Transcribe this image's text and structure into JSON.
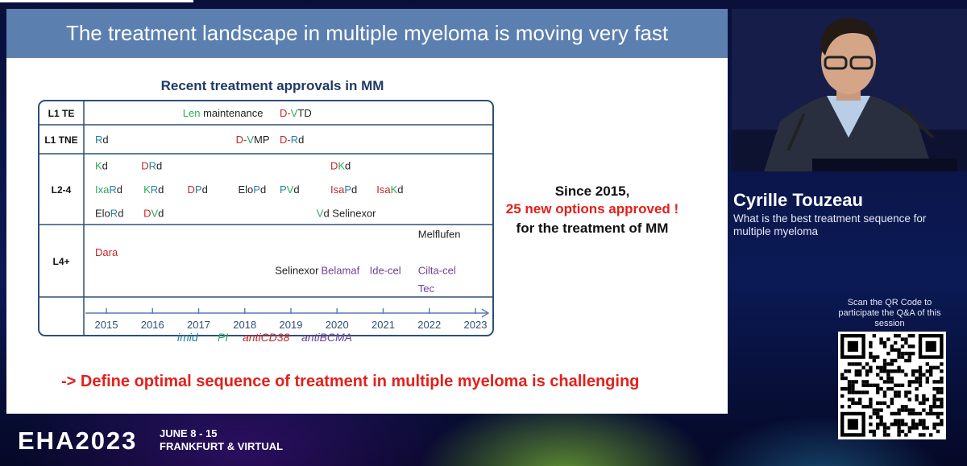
{
  "slide": {
    "title": "The treatment landscape in multiple myeloma is moving very fast",
    "chart_title": "Recent treatment approvals in MM",
    "since": {
      "line1": "Since 2015,",
      "line2": "25 new options approved !",
      "line3": "for the treatment of MM"
    },
    "footer_message": "-> Define optimal sequence of treatment  in multiple myeloma is challenging",
    "legend": [
      {
        "label": "imid",
        "color": "#2b7fa3"
      },
      {
        "label": "PI",
        "color": "#2bab5b"
      },
      {
        "label": "antiCD38",
        "color": "#c4272c"
      },
      {
        "label": "antiBCMA",
        "color": "#6f3f93"
      }
    ]
  },
  "chart_data": {
    "type": "table",
    "title": "Recent treatment approvals in MM",
    "rows": [
      {
        "line": "L1 TE",
        "entries": [
          {
            "year": 2016.9,
            "level": 0,
            "parts": [
              [
                "Len",
                "#2bab5b"
              ],
              [
                " maintenance",
                "#222222"
              ]
            ]
          },
          {
            "year": 2019.0,
            "level": 0,
            "parts": [
              [
                "D-",
                "#c4272c"
              ],
              [
                "V",
                "#2bab5b"
              ],
              [
                "TD",
                "#222222"
              ]
            ]
          }
        ]
      },
      {
        "line": "L1 TNE",
        "entries": [
          {
            "year": 2015.0,
            "level": 0,
            "parts": [
              [
                "R",
                "#2b7fa3"
              ],
              [
                "d",
                "#222222"
              ]
            ]
          },
          {
            "year": 2018.05,
            "level": 0,
            "parts": [
              [
                "D-",
                "#c4272c"
              ],
              [
                "V",
                "#2bab5b"
              ],
              [
                "MP",
                "#222222"
              ]
            ]
          },
          {
            "year": 2019.0,
            "level": 0,
            "parts": [
              [
                "D-",
                "#c4272c"
              ],
              [
                "R",
                "#2b7fa3"
              ],
              [
                "d",
                "#222222"
              ]
            ]
          }
        ]
      },
      {
        "line": "L2-4",
        "entries": [
          {
            "year": 2015.0,
            "level": 0,
            "parts": [
              [
                "K",
                "#2bab5b"
              ],
              [
                "d",
                "#222222"
              ]
            ]
          },
          {
            "year": 2016.0,
            "level": 0,
            "parts": [
              [
                "D",
                "#c4272c"
              ],
              [
                "R",
                "#2b7fa3"
              ],
              [
                "d",
                "#222222"
              ]
            ]
          },
          {
            "year": 2020.1,
            "level": 0,
            "parts": [
              [
                "D",
                "#c4272c"
              ],
              [
                "K",
                "#2bab5b"
              ],
              [
                "d",
                "#222222"
              ]
            ]
          },
          {
            "year": 2015.0,
            "level": 1,
            "parts": [
              [
                "Ixa",
                "#2bab5b"
              ],
              [
                "R",
                "#2b7fa3"
              ],
              [
                "d",
                "#222222"
              ]
            ]
          },
          {
            "year": 2016.05,
            "level": 1,
            "parts": [
              [
                "K",
                "#2bab5b"
              ],
              [
                "R",
                "#2b7fa3"
              ],
              [
                "d",
                "#222222"
              ]
            ]
          },
          {
            "year": 2017.0,
            "level": 1,
            "parts": [
              [
                "D",
                "#c4272c"
              ],
              [
                "P",
                "#2b7fa3"
              ],
              [
                "d",
                "#222222"
              ]
            ]
          },
          {
            "year": 2018.1,
            "level": 1,
            "parts": [
              [
                "Elo",
                "#222222"
              ],
              [
                "P",
                "#2b7fa3"
              ],
              [
                "d",
                "#222222"
              ]
            ]
          },
          {
            "year": 2019.0,
            "level": 1,
            "parts": [
              [
                "P",
                "#2b7fa3"
              ],
              [
                "V",
                "#2bab5b"
              ],
              [
                "d",
                "#222222"
              ]
            ]
          },
          {
            "year": 2020.1,
            "level": 1,
            "parts": [
              [
                "Isa",
                "#c4272c"
              ],
              [
                "P",
                "#2b7fa3"
              ],
              [
                "d",
                "#222222"
              ]
            ]
          },
          {
            "year": 2021.1,
            "level": 1,
            "parts": [
              [
                "Isa",
                "#c4272c"
              ],
              [
                "K",
                "#2bab5b"
              ],
              [
                "d",
                "#222222"
              ]
            ]
          },
          {
            "year": 2015.0,
            "level": 2,
            "parts": [
              [
                "Elo",
                "#222222"
              ],
              [
                "R",
                "#2b7fa3"
              ],
              [
                "d",
                "#222222"
              ]
            ]
          },
          {
            "year": 2016.05,
            "level": 2,
            "parts": [
              [
                "D",
                "#c4272c"
              ],
              [
                "V",
                "#2bab5b"
              ],
              [
                "d",
                "#222222"
              ]
            ]
          },
          {
            "year": 2019.8,
            "level": 2,
            "parts": [
              [
                "V",
                "#2bab5b"
              ],
              [
                "d Selinexor",
                "#222222"
              ]
            ]
          }
        ]
      },
      {
        "line": "L4+",
        "entries": [
          {
            "year": 2022.0,
            "level": 0,
            "parts": [
              [
                "Melflufen",
                "#222222"
              ]
            ]
          },
          {
            "year": 2015.0,
            "level": 1,
            "parts": [
              [
                "Dara",
                "#c4272c"
              ]
            ]
          },
          {
            "year": 2018.9,
            "level": 2,
            "parts": [
              [
                "Selinexor",
                "#222222"
              ]
            ]
          },
          {
            "year": 2019.9,
            "level": 2,
            "parts": [
              [
                "Belamaf",
                "#6f3f93"
              ]
            ]
          },
          {
            "year": 2020.95,
            "level": 2,
            "parts": [
              [
                "Ide-cel",
                "#6f3f93"
              ]
            ]
          },
          {
            "year": 2022.0,
            "level": 2,
            "parts": [
              [
                "Cilta-cel",
                "#6f3f93"
              ]
            ]
          },
          {
            "year": 2022.0,
            "level": 3,
            "parts": [
              [
                "Tec",
                "#6f3f93"
              ]
            ]
          }
        ]
      }
    ],
    "x_ticks": [
      2015,
      2016,
      2017,
      2018,
      2019,
      2020,
      2021,
      2022,
      2023
    ],
    "xlim": [
      2015,
      2023
    ]
  },
  "speaker": {
    "name": "Cyrille Touzeau",
    "topic": "What is the best treatment sequence for multiple myeloma"
  },
  "qr": {
    "caption": "Scan the QR Code to participate the Q&A of this session"
  },
  "brand": {
    "name": "EHA2023",
    "date_line1": "JUNE 8 - 15",
    "date_line2": "FRANKFURT & VIRTUAL"
  }
}
